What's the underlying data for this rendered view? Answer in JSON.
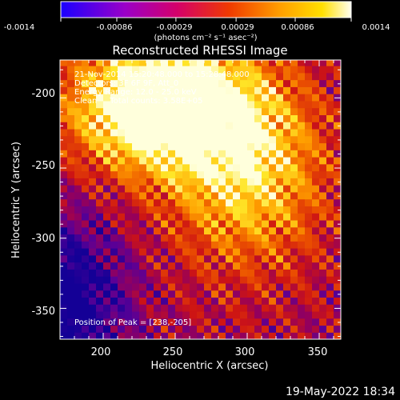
{
  "chart_data": {
    "type": "heatmap",
    "title": "Reconstructed RHESSI Image",
    "xlabel": "Heliocentric X (arcsec)",
    "ylabel": "Heliocentric Y (arcsec)",
    "xlim": [
      170,
      365
    ],
    "ylim": [
      -372,
      -173
    ],
    "x_ticks": [
      "200",
      "250",
      "300",
      "350"
    ],
    "x_tick_values": [
      200,
      250,
      300,
      350
    ],
    "y_ticks": [
      "-200",
      "-250",
      "-300",
      "-350"
    ],
    "y_tick_values": [
      -200,
      -250,
      -300,
      -350
    ],
    "colorbar": {
      "min": -0.0014,
      "max": 0.0014,
      "tick_labels": [
        "-0.0014",
        "-0.00086",
        "-0.00029",
        "0.00029",
        "0.00086",
        "0.0014"
      ],
      "tick_values": [
        -0.0014,
        -0.00086,
        -0.00029,
        0.00029,
        0.00086,
        0.0014
      ],
      "unit_label": "(photons cm⁻² s⁻¹ asec⁻²)",
      "colors": [
        "#1a00ff",
        "#9a00c8",
        "#d4006a",
        "#f03a00",
        "#ff9c00",
        "#ffe000",
        "#fffff0"
      ]
    },
    "annotations": [
      "21-Nov-2014 15:20:48.000 to 15:28:48.000",
      "Detectors: 3F 6F 9F, Att_0",
      "Energy Range: 12.0 - 25.0 keV",
      "Clean     Total counts: 3.58E+05"
    ],
    "peak_label": "Position of Peak = [238,-205]",
    "peak": [
      238,
      -205
    ]
  },
  "footer_date": "19-May-2022 18:34"
}
